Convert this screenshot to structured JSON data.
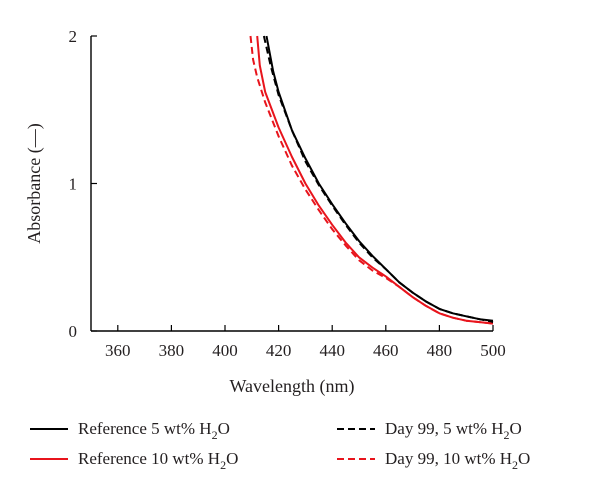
{
  "chart_data": {
    "type": "line",
    "xlabel": "Wavelength (nm)",
    "ylabel": "Absorbance (—)",
    "xlim": [
      350,
      500
    ],
    "ylim": [
      0,
      2
    ],
    "xticks": [
      "360",
      "380",
      "400",
      "420",
      "440",
      "460",
      "480",
      "500"
    ],
    "yticks": [
      "0",
      "1",
      "2"
    ],
    "grid": false,
    "legend_position": "bottom",
    "series": [
      {
        "name": "Reference 5 wt% H2O",
        "legend_main": "Reference 5 wt% H",
        "legend_sub": "2",
        "legend_tail": "O",
        "color": "#000000",
        "dash": "solid",
        "x": [
          415.5,
          418,
          420,
          425,
          430,
          435,
          440,
          445,
          450,
          455,
          460,
          465,
          470,
          475,
          480,
          485,
          490,
          495,
          500
        ],
        "y": [
          2.0,
          1.76,
          1.62,
          1.36,
          1.17,
          1.0,
          0.86,
          0.73,
          0.61,
          0.51,
          0.42,
          0.33,
          0.26,
          0.2,
          0.15,
          0.12,
          0.1,
          0.08,
          0.07
        ]
      },
      {
        "name": "Reference 10 wt% H2O",
        "legend_main": "Reference 10 wt% H",
        "legend_sub": "2",
        "legend_tail": "O",
        "color": "#e8141c",
        "dash": "solid",
        "x": [
          412,
          413,
          415,
          420,
          425,
          430,
          435,
          440,
          445,
          450,
          455,
          460,
          465,
          470,
          475,
          480,
          485,
          490,
          495,
          500
        ],
        "y": [
          2.0,
          1.8,
          1.62,
          1.38,
          1.18,
          1.0,
          0.85,
          0.72,
          0.6,
          0.5,
          0.43,
          0.37,
          0.3,
          0.23,
          0.17,
          0.12,
          0.09,
          0.07,
          0.06,
          0.05
        ]
      },
      {
        "name": "Day 99, 5 wt% H2O",
        "legend_main": "Day 99, 5 wt% H",
        "legend_sub": "2",
        "legend_tail": "O",
        "color": "#000000",
        "dash": "dashed",
        "x": [
          414.5,
          417,
          420,
          425,
          430,
          435,
          440,
          445,
          450,
          455,
          460,
          465,
          470,
          475,
          480,
          485,
          490,
          495,
          500
        ],
        "y": [
          2.0,
          1.8,
          1.6,
          1.36,
          1.15,
          0.99,
          0.85,
          0.72,
          0.6,
          0.5,
          0.42,
          0.33,
          0.26,
          0.2,
          0.15,
          0.12,
          0.1,
          0.08,
          0.06
        ]
      },
      {
        "name": "Day 99, 10 wt% H2O",
        "legend_main": "Day 99, 10 wt% H",
        "legend_sub": "2",
        "legend_tail": "O",
        "color": "#e8141c",
        "dash": "dashed",
        "x": [
          409.5,
          410.5,
          412,
          415,
          420,
          425,
          430,
          435,
          440,
          445,
          450,
          455,
          460,
          465,
          470,
          475,
          480,
          485,
          490,
          495,
          500
        ],
        "y": [
          2.0,
          1.84,
          1.72,
          1.55,
          1.32,
          1.12,
          0.96,
          0.82,
          0.69,
          0.58,
          0.48,
          0.41,
          0.36,
          0.3,
          0.23,
          0.17,
          0.12,
          0.09,
          0.07,
          0.06,
          0.05
        ]
      }
    ]
  }
}
